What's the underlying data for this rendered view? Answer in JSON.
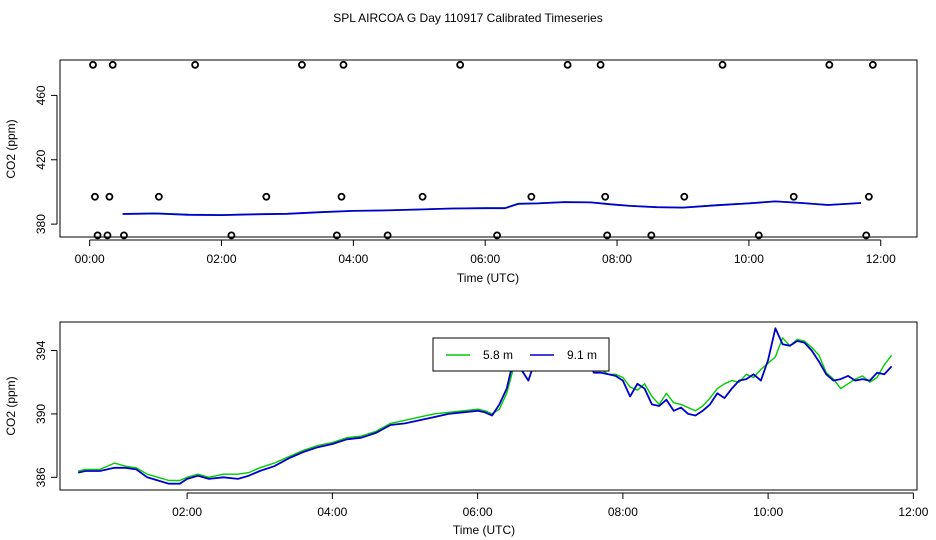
{
  "title": "SPL AIRCOA G  Day 110917  Calibrated Timeseries",
  "chart_data": [
    {
      "type": "line",
      "xlabel": "Time (UTC)",
      "ylabel": "CO2 (ppm)",
      "xlim": [
        -0.45,
        12.55
      ],
      "ylim": [
        372,
        482
      ],
      "x_ticks": [
        0,
        2,
        4,
        6,
        8,
        10,
        12
      ],
      "x_tick_labels": [
        "00:00",
        "02:00",
        "04:00",
        "06:00",
        "08:00",
        "10:00",
        "12:00"
      ],
      "y_ticks": [
        380,
        420,
        460
      ],
      "y_tick_labels": [
        "380",
        "420",
        "460"
      ],
      "colors": {
        "series_5_8": "#00cc00",
        "series_9_1": "#0000cc",
        "markers": "#000000"
      },
      "markers": {
        "label": "calibration points (circles)",
        "groups": [
          {
            "y": 479,
            "x": [
              0.05,
              0.35,
              1.6,
              3.22,
              3.85,
              5.62,
              7.25,
              7.75,
              9.6,
              11.22,
              11.88
            ]
          },
          {
            "y": 397,
            "x": [
              0.08,
              0.3,
              1.05,
              2.68,
              3.82,
              5.05,
              6.7,
              7.82,
              9.02,
              10.68,
              11.82
            ]
          },
          {
            "y": 373,
            "x": [
              0.12,
              0.27,
              0.52,
              2.15,
              3.75,
              4.52,
              6.18,
              7.85,
              8.52,
              10.15,
              11.78
            ]
          }
        ]
      },
      "series": [
        {
          "name": "5.8 m",
          "color": "#00cc00",
          "x": [
            0.5,
            1.0,
            1.5,
            2.0,
            2.5,
            3.0,
            3.5,
            4.0,
            4.5,
            5.0,
            5.5,
            6.0,
            6.3,
            6.5,
            6.8,
            7.2,
            7.6,
            7.9,
            8.2,
            8.6,
            9.0,
            9.5,
            10.0,
            10.4,
            10.8,
            11.2,
            11.7
          ],
          "y": [
            386.4,
            386.8,
            386.0,
            385.8,
            386.2,
            386.5,
            387.5,
            388.3,
            388.6,
            389.2,
            389.8,
            390.0,
            390.0,
            392.8,
            393.0,
            393.8,
            393.6,
            392.4,
            391.4,
            390.6,
            390.4,
            391.8,
            393.0,
            394.2,
            393.2,
            392.0,
            393.2
          ]
        },
        {
          "name": "9.1 m",
          "color": "#0000cc",
          "x": [
            0.5,
            1.0,
            1.5,
            2.0,
            2.5,
            3.0,
            3.5,
            4.0,
            4.5,
            5.0,
            5.5,
            6.0,
            6.3,
            6.5,
            6.8,
            7.2,
            7.6,
            7.9,
            8.2,
            8.6,
            9.0,
            9.5,
            10.0,
            10.4,
            10.8,
            11.2,
            11.7
          ],
          "y": [
            386.3,
            386.6,
            385.8,
            385.6,
            386.1,
            386.4,
            387.4,
            388.2,
            388.5,
            389.1,
            389.7,
            389.9,
            389.9,
            392.6,
            392.9,
            393.7,
            393.5,
            392.3,
            391.3,
            390.5,
            390.3,
            391.7,
            392.9,
            394.1,
            393.1,
            391.9,
            393.1
          ]
        }
      ]
    },
    {
      "type": "line",
      "xlabel": "Time (UTC)",
      "ylabel": "CO2 (ppm)",
      "xlim": [
        0.25,
        12.05
      ],
      "ylim": [
        385.2,
        395.8
      ],
      "x_ticks": [
        2,
        4,
        6,
        8,
        10,
        12
      ],
      "x_tick_labels": [
        "02:00",
        "04:00",
        "06:00",
        "08:00",
        "10:00",
        "12:00"
      ],
      "y_ticks": [
        386,
        390,
        394
      ],
      "y_tick_labels": [
        "386",
        "390",
        "394"
      ],
      "legend": {
        "position": "top-center",
        "entries": [
          "5.8 m",
          "9.1 m"
        ]
      },
      "series": [
        {
          "name": "5.8 m",
          "color": "#00cc00",
          "x": [
            0.5,
            0.6,
            0.8,
            1.0,
            1.15,
            1.3,
            1.45,
            1.6,
            1.75,
            1.9,
            2.0,
            2.15,
            2.3,
            2.5,
            2.7,
            2.85,
            3.0,
            3.2,
            3.4,
            3.6,
            3.8,
            4.0,
            4.2,
            4.4,
            4.6,
            4.8,
            5.0,
            5.2,
            5.4,
            5.6,
            5.8,
            6.0,
            6.1,
            6.2,
            6.3,
            6.4,
            6.5,
            6.6,
            6.7,
            6.8,
            6.9,
            7.0,
            7.1,
            7.2,
            7.3,
            7.4,
            7.5,
            7.6,
            7.7,
            7.8,
            7.9,
            8.0,
            8.1,
            8.2,
            8.3,
            8.4,
            8.5,
            8.6,
            8.7,
            8.8,
            8.9,
            9.0,
            9.1,
            9.2,
            9.3,
            9.4,
            9.5,
            9.6,
            9.7,
            9.8,
            9.9,
            10.0,
            10.1,
            10.2,
            10.3,
            10.4,
            10.5,
            10.6,
            10.7,
            10.8,
            10.9,
            11.0,
            11.1,
            11.2,
            11.3,
            11.4,
            11.5,
            11.6,
            11.7
          ],
          "y": [
            386.4,
            386.5,
            386.5,
            386.9,
            386.7,
            386.6,
            386.2,
            386.0,
            385.8,
            385.8,
            386.0,
            386.2,
            386.0,
            386.2,
            386.2,
            386.3,
            386.6,
            386.9,
            387.3,
            387.7,
            388.0,
            388.2,
            388.5,
            388.6,
            388.9,
            389.4,
            389.6,
            389.8,
            390.0,
            390.1,
            390.2,
            390.3,
            390.2,
            390.0,
            390.3,
            391.3,
            393.0,
            394.6,
            393.4,
            392.7,
            393.2,
            393.6,
            393.9,
            394.0,
            394.2,
            394.1,
            393.9,
            393.3,
            392.8,
            392.5,
            392.5,
            392.3,
            391.7,
            391.5,
            391.9,
            391.1,
            390.6,
            391.3,
            390.7,
            390.6,
            390.4,
            390.2,
            390.5,
            391.0,
            391.6,
            391.9,
            392.1,
            392.0,
            392.5,
            392.3,
            392.8,
            393.2,
            393.6,
            394.8,
            394.3,
            394.7,
            394.6,
            394.2,
            393.7,
            392.6,
            392.2,
            391.6,
            391.9,
            392.2,
            392.4,
            392.0,
            392.3,
            393.1,
            393.7
          ]
        },
        {
          "name": "9.1 m",
          "color": "#0000cc",
          "x": [
            0.5,
            0.6,
            0.8,
            1.0,
            1.15,
            1.3,
            1.45,
            1.6,
            1.75,
            1.9,
            2.0,
            2.15,
            2.3,
            2.5,
            2.7,
            2.85,
            3.0,
            3.2,
            3.4,
            3.6,
            3.8,
            4.0,
            4.2,
            4.4,
            4.6,
            4.8,
            5.0,
            5.2,
            5.4,
            5.6,
            5.8,
            6.0,
            6.1,
            6.2,
            6.3,
            6.4,
            6.5,
            6.6,
            6.7,
            6.8,
            6.9,
            7.0,
            7.1,
            7.2,
            7.3,
            7.4,
            7.5,
            7.6,
            7.7,
            7.8,
            7.9,
            8.0,
            8.1,
            8.2,
            8.3,
            8.4,
            8.5,
            8.6,
            8.7,
            8.8,
            8.9,
            9.0,
            9.1,
            9.2,
            9.3,
            9.4,
            9.5,
            9.6,
            9.7,
            9.8,
            9.9,
            10.0,
            10.1,
            10.2,
            10.3,
            10.4,
            10.5,
            10.6,
            10.7,
            10.8,
            10.9,
            11.0,
            11.1,
            11.2,
            11.3,
            11.4,
            11.5,
            11.6,
            11.7
          ],
          "y": [
            386.3,
            386.4,
            386.4,
            386.6,
            386.6,
            386.5,
            386.0,
            385.8,
            385.6,
            385.6,
            385.9,
            386.1,
            385.9,
            386.0,
            385.9,
            386.1,
            386.4,
            386.7,
            387.2,
            387.6,
            387.9,
            388.1,
            388.4,
            388.5,
            388.8,
            389.3,
            389.4,
            389.6,
            389.8,
            390.0,
            390.1,
            390.2,
            390.1,
            389.9,
            390.6,
            391.6,
            393.5,
            392.8,
            392.1,
            393.5,
            392.9,
            394.2,
            393.6,
            394.1,
            393.9,
            394.2,
            393.7,
            392.6,
            392.6,
            392.5,
            392.4,
            392.1,
            391.1,
            391.9,
            391.6,
            390.6,
            390.5,
            390.9,
            390.2,
            390.4,
            390.0,
            389.9,
            390.2,
            390.6,
            391.3,
            391.0,
            391.6,
            392.1,
            392.2,
            392.5,
            392.1,
            393.4,
            395.4,
            394.4,
            394.3,
            394.6,
            394.5,
            394.0,
            393.3,
            392.5,
            392.1,
            392.2,
            392.4,
            392.1,
            392.2,
            392.1,
            392.6,
            392.5,
            393.0
          ]
        }
      ]
    }
  ]
}
